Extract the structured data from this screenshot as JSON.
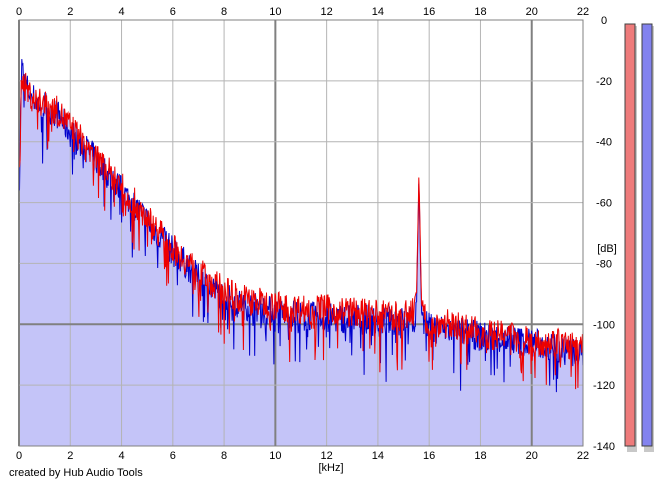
{
  "credit": "created by Hub Audio Tools",
  "chart_data": {
    "type": "area",
    "xlabel": "[kHz]",
    "ylabel": "[dB]",
    "xlim": [
      0,
      22
    ],
    "ylim": [
      -140,
      0
    ],
    "x_ticks": [
      "0",
      "2",
      "4",
      "6",
      "8",
      "10",
      "12",
      "14",
      "16",
      "18",
      "20",
      "22"
    ],
    "y_ticks": [
      "0",
      "-20",
      "-40",
      "-60",
      "-80",
      "-100",
      "-120",
      "-140"
    ],
    "grid": true,
    "x_units": "kHz",
    "y_units": "dB",
    "colors": {
      "fill": "#c4c4f8",
      "series_red": "#ee0000",
      "series_blue": "#0000cc",
      "grid": "#b4b4b4",
      "major_grid": "#808080",
      "meter_left": "#ee7b7b",
      "meter_right": "#8282ee"
    },
    "series": [
      {
        "color": "#0000cc",
        "x": [
          0,
          0.1,
          0.2,
          0.3,
          0.5,
          0.7,
          1,
          1.5,
          2,
          2.5,
          3,
          3.5,
          4,
          4.5,
          5,
          5.5,
          6,
          6.5,
          7,
          7.5,
          8,
          8.5,
          9,
          9.5,
          10,
          11,
          12,
          13,
          14,
          15,
          15.4,
          15.5,
          15.55,
          15.6,
          15.65,
          15.7,
          15.8,
          16,
          17,
          18,
          19,
          20,
          21,
          22
        ],
        "values": [
          -60,
          -15,
          -20,
          -22,
          -25,
          -27,
          -28,
          -31,
          -37,
          -41,
          -46,
          -51,
          -56,
          -61,
          -66,
          -71,
          -76,
          -80,
          -85,
          -88,
          -91,
          -93,
          -94,
          -95,
          -96,
          -97,
          -98,
          -98,
          -99,
          -99,
          -99,
          -96,
          -75,
          -52,
          -75,
          -96,
          -100,
          -101,
          -102,
          -104,
          -105,
          -106,
          -108,
          -110
        ]
      },
      {
        "color": "#ee0000",
        "x": [
          0,
          0.1,
          0.2,
          0.3,
          0.5,
          0.7,
          1,
          1.5,
          2,
          2.5,
          3,
          3.5,
          4,
          4.5,
          5,
          5.5,
          6,
          6.5,
          7,
          7.5,
          8,
          8.5,
          9,
          9.5,
          10,
          11,
          12,
          13,
          14,
          15,
          15.4,
          15.5,
          15.55,
          15.6,
          15.65,
          15.7,
          15.8,
          16,
          17,
          18,
          19,
          20,
          21,
          22
        ],
        "values": [
          -60,
          -17,
          -21,
          -23,
          -25,
          -27,
          -28,
          -30,
          -35,
          -40,
          -45,
          -50,
          -55,
          -60,
          -65,
          -70,
          -75,
          -79,
          -83,
          -86,
          -89,
          -91,
          -92,
          -93,
          -94,
          -95,
          -95,
          -96,
          -97,
          -97,
          -96,
          -93,
          -72,
          -50,
          -72,
          -93,
          -97,
          -99,
          -100,
          -103,
          -104,
          -105,
          -106,
          -108
        ]
      }
    ],
    "meters": {
      "left": 1.0,
      "right": 1.0
    }
  }
}
